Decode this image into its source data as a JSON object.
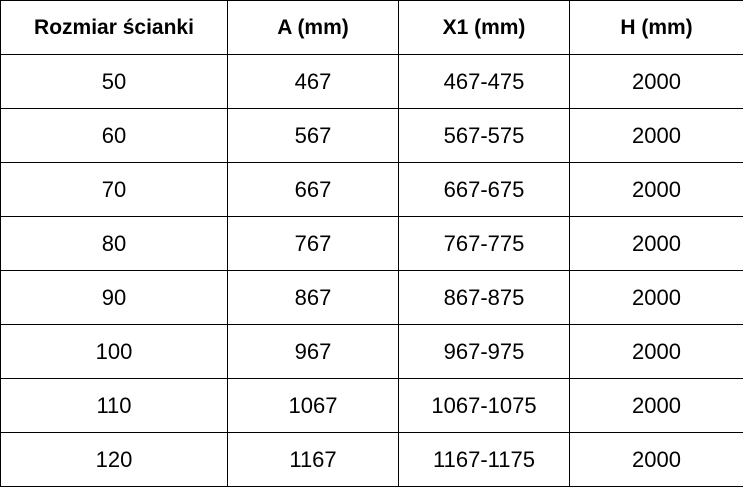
{
  "table": {
    "headers": [
      "Rozmiar ścianki",
      "A (mm)",
      "X1 (mm)",
      "H (mm)"
    ],
    "rows": [
      [
        "50",
        "467",
        "467-475",
        "2000"
      ],
      [
        "60",
        "567",
        "567-575",
        "2000"
      ],
      [
        "70",
        "667",
        "667-675",
        "2000"
      ],
      [
        "80",
        "767",
        "767-775",
        "2000"
      ],
      [
        "90",
        "867",
        "867-875",
        "2000"
      ],
      [
        "100",
        "967",
        "967-975",
        "2000"
      ],
      [
        "110",
        "1067",
        "1067-1075",
        "2000"
      ],
      [
        "120",
        "1167",
        "1167-1175",
        "2000"
      ]
    ]
  }
}
